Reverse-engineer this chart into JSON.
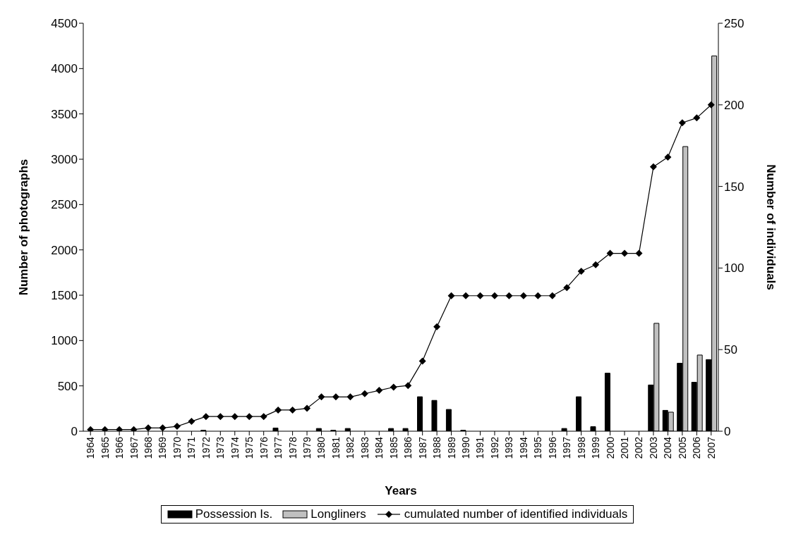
{
  "chart_data": {
    "type": "bar",
    "xlabel": "Years",
    "ylabel": "Number of photographs",
    "y2label": "Number of individuals",
    "categories": [
      "1964",
      "1965",
      "1966",
      "1967",
      "1968",
      "1969",
      "1970",
      "1971",
      "1972",
      "1973",
      "1974",
      "1975",
      "1976",
      "1977",
      "1978",
      "1979",
      "1980",
      "1981",
      "1982",
      "1983",
      "1984",
      "1985",
      "1986",
      "1987",
      "1988",
      "1989",
      "1990",
      "1991",
      "1992",
      "1993",
      "1994",
      "1995",
      "1996",
      "1997",
      "1998",
      "1999",
      "2000",
      "2001",
      "2002",
      "2003",
      "2004",
      "2005",
      "2006",
      "2007"
    ],
    "series": [
      {
        "name": "Possession Is.",
        "color": "#000000",
        "values": [
          0,
          0,
          0,
          0,
          0,
          0,
          0,
          0,
          10,
          0,
          0,
          0,
          0,
          35,
          0,
          0,
          30,
          10,
          30,
          0,
          0,
          30,
          30,
          380,
          340,
          240,
          10,
          0,
          0,
          0,
          0,
          0,
          0,
          30,
          380,
          50,
          640,
          0,
          0,
          510,
          230,
          750,
          540,
          790
        ]
      },
      {
        "name": "Longliners",
        "color": "#c0c0c0",
        "values": [
          0,
          0,
          0,
          0,
          0,
          0,
          0,
          0,
          0,
          0,
          0,
          0,
          0,
          0,
          0,
          0,
          0,
          0,
          0,
          0,
          0,
          0,
          0,
          0,
          0,
          0,
          0,
          0,
          0,
          0,
          0,
          0,
          0,
          0,
          0,
          0,
          0,
          0,
          0,
          1190,
          210,
          3140,
          840,
          4140
        ]
      },
      {
        "name": "cumulated number of identified individuals",
        "type": "line",
        "axis": "y2",
        "color": "#000000",
        "values": [
          1,
          1,
          1,
          1,
          2,
          2,
          3,
          6,
          9,
          9,
          9,
          9,
          9,
          13,
          13,
          14,
          21,
          21,
          21,
          23,
          25,
          27,
          28,
          43,
          64,
          83,
          83,
          83,
          83,
          83,
          83,
          83,
          83,
          88,
          98,
          102,
          109,
          109,
          109,
          162,
          168,
          189,
          192,
          200
        ]
      }
    ],
    "ylim": [
      0,
      4500
    ],
    "yticks": [
      0,
      500,
      1000,
      1500,
      2000,
      2500,
      3000,
      3500,
      4000,
      4500
    ],
    "y2lim": [
      0,
      250
    ],
    "y2ticks": [
      0,
      50,
      100,
      150,
      200,
      250
    ],
    "legend": "bottom",
    "marker": "diamond",
    "line_style": "solid"
  }
}
